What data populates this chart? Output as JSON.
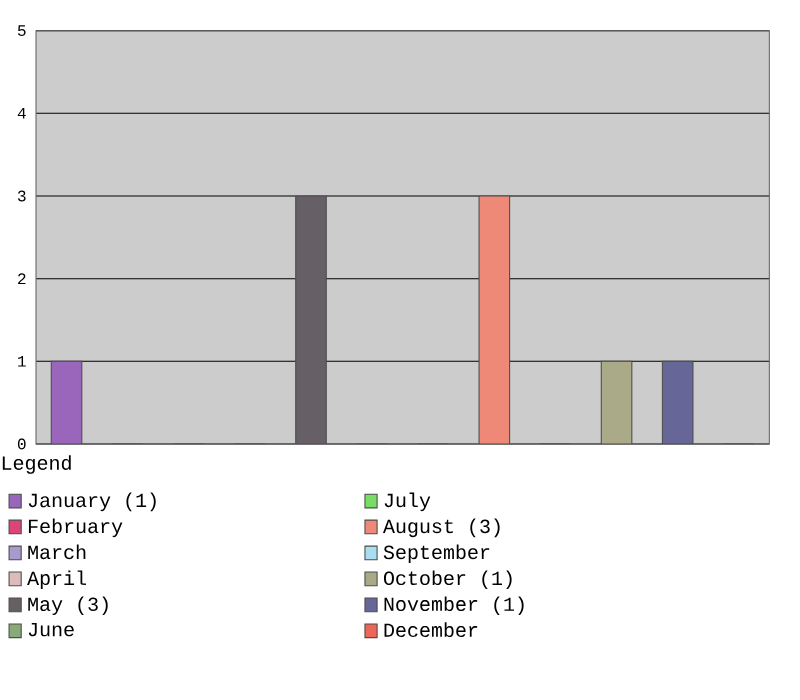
{
  "chart_data": {
    "type": "bar",
    "legend_title": "Legend",
    "categories": [
      null,
      null,
      null,
      null,
      null,
      null,
      null,
      null,
      null,
      null,
      null,
      null
    ],
    "series": [
      {
        "name": "January (1)",
        "color": "#9966bb",
        "values": [
          1,
          null,
          null,
          null,
          null,
          null,
          null,
          null,
          null,
          null,
          null,
          null
        ]
      },
      {
        "name": "February",
        "color": "#dd4477",
        "values": [
          null,
          0,
          null,
          null,
          null,
          null,
          null,
          null,
          null,
          null,
          null,
          null
        ]
      },
      {
        "name": "March",
        "color": "#aa99cc",
        "values": [
          null,
          null,
          0,
          null,
          null,
          null,
          null,
          null,
          null,
          null,
          null,
          null
        ]
      },
      {
        "name": "April",
        "color": "#ddbbbb",
        "values": [
          null,
          null,
          null,
          0,
          null,
          null,
          null,
          null,
          null,
          null,
          null,
          null
        ]
      },
      {
        "name": "May (3)",
        "color": "#665f66",
        "values": [
          null,
          null,
          null,
          null,
          3,
          null,
          null,
          null,
          null,
          null,
          null,
          null
        ]
      },
      {
        "name": "June",
        "color": "#88aa77",
        "values": [
          null,
          null,
          null,
          null,
          null,
          0,
          null,
          null,
          null,
          null,
          null,
          null
        ]
      },
      {
        "name": "July",
        "color": "#77dd66",
        "values": [
          null,
          null,
          null,
          null,
          null,
          null,
          0,
          null,
          null,
          null,
          null,
          null
        ]
      },
      {
        "name": "August (3)",
        "color": "#ee8877",
        "values": [
          null,
          null,
          null,
          null,
          null,
          null,
          null,
          3,
          null,
          null,
          null,
          null
        ]
      },
      {
        "name": "September",
        "color": "#aaddee",
        "values": [
          null,
          null,
          null,
          null,
          null,
          null,
          null,
          null,
          0,
          null,
          null,
          null
        ]
      },
      {
        "name": "October (1)",
        "color": "#aaa988",
        "values": [
          null,
          null,
          null,
          null,
          null,
          null,
          null,
          null,
          null,
          1,
          null,
          null
        ]
      },
      {
        "name": "November (1)",
        "color": "#666699",
        "values": [
          null,
          null,
          null,
          null,
          null,
          null,
          null,
          null,
          null,
          null,
          1,
          null
        ]
      },
      {
        "name": "December",
        "color": "#ee6655",
        "values": [
          null,
          null,
          null,
          null,
          null,
          null,
          null,
          null,
          null,
          null,
          null,
          0
        ]
      }
    ],
    "ylim": [
      0,
      5
    ],
    "yticks": [
      0,
      1,
      2,
      3,
      4,
      5
    ],
    "grid": "y",
    "legend": "bottom",
    "tick_labels": "y"
  }
}
